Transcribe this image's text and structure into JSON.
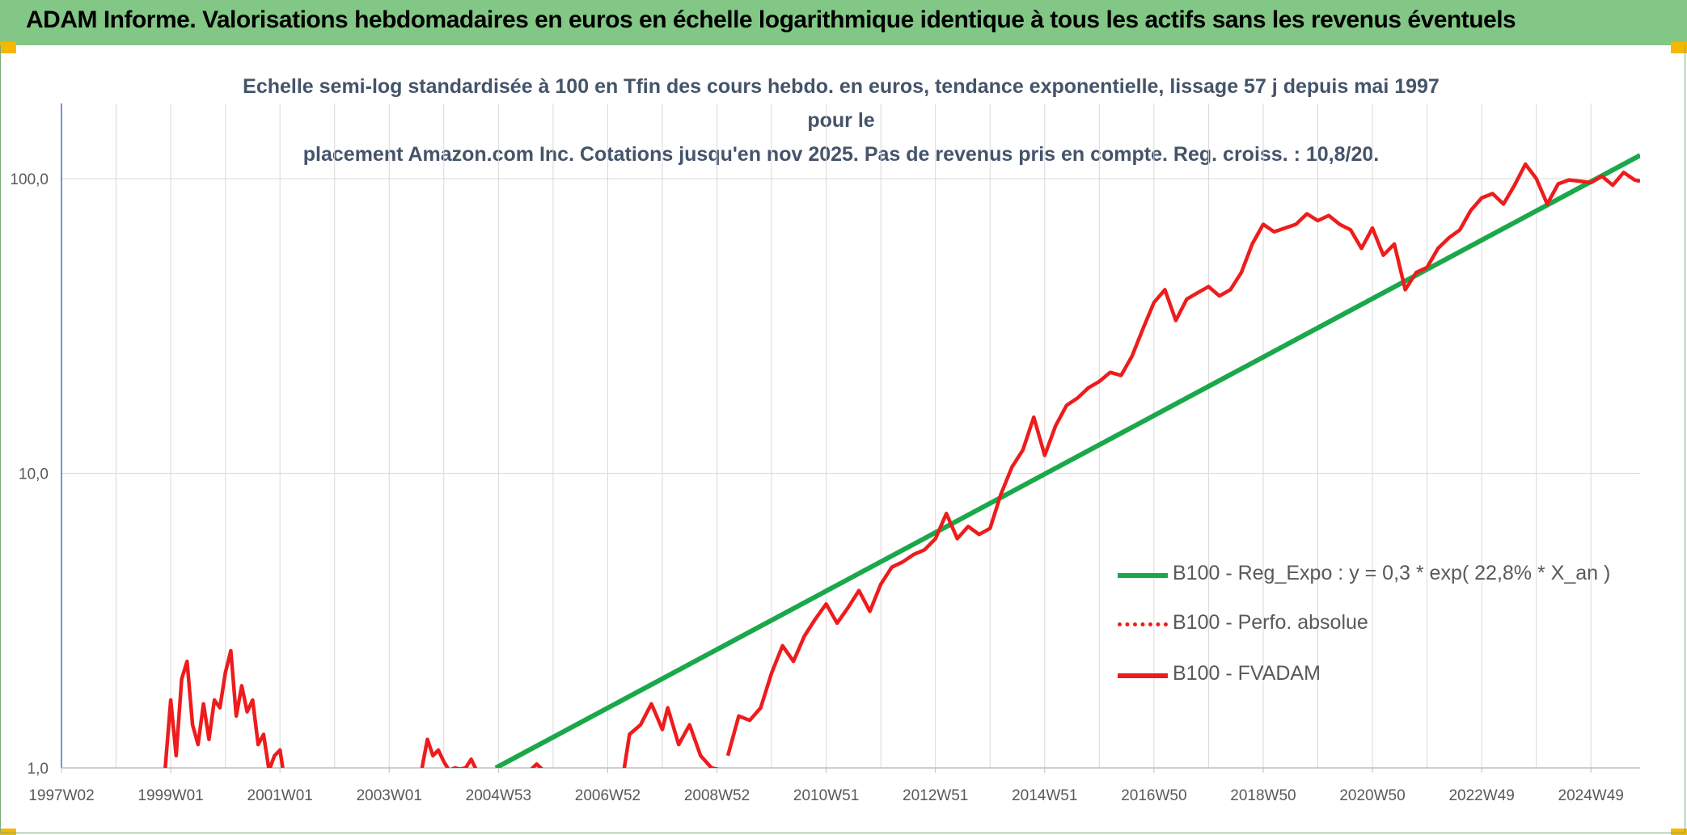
{
  "header": {
    "title": "ADAM Informe. Valorisations hebdomadaires en euros en échelle logarithmique identique à tous les actifs sans les revenus éventuels"
  },
  "colors": {
    "header_bg": "#82c785",
    "trend": "#1aa84a",
    "series": "#ee1c1c",
    "axis": "#4472c4",
    "grid": "#d9d9d9"
  },
  "chart_data": {
    "type": "line",
    "title_line1": "Echelle semi-log standardisée à 100 en Tfin des cours hebdo. en euros, tendance exponentielle, lissage 57 j depuis mai 1997 pour le",
    "title_line2": "placement Amazon.com Inc. Cotations jusqu'en nov 2025. Pas de revenus pris en compte. Reg. croiss. : 10,8/20.",
    "y_scale": "log",
    "ylim": [
      1,
      180
    ],
    "xlim": [
      1997.0,
      2025.9
    ],
    "y_ticks": [
      {
        "value": 1,
        "label": "1,0"
      },
      {
        "value": 10,
        "label": "10,0"
      },
      {
        "value": 100,
        "label": "100,0"
      }
    ],
    "x_ticks": [
      {
        "value": 1997.0,
        "label": "1997W02"
      },
      {
        "value": 1999.0,
        "label": "1999W01"
      },
      {
        "value": 2001.0,
        "label": "2001W01"
      },
      {
        "value": 2003.0,
        "label": "2003W01"
      },
      {
        "value": 2005.0,
        "label": "2004W53"
      },
      {
        "value": 2007.0,
        "label": "2006W52"
      },
      {
        "value": 2009.0,
        "label": "2008W52"
      },
      {
        "value": 2011.0,
        "label": "2010W51"
      },
      {
        "value": 2013.0,
        "label": "2012W51"
      },
      {
        "value": 2015.0,
        "label": "2014W51"
      },
      {
        "value": 2017.0,
        "label": "2016W50"
      },
      {
        "value": 2019.0,
        "label": "2018W50"
      },
      {
        "value": 2021.0,
        "label": "2020W50"
      },
      {
        "value": 2023.0,
        "label": "2022W49"
      },
      {
        "value": 2025.0,
        "label": "2024W49"
      }
    ],
    "grid": true,
    "legend_position": "right",
    "series": [
      {
        "name": "B100 - Reg_Expo : y = 0,3 * exp( 22,8% *  X_an )",
        "style": "solid",
        "color": "#1aa84a",
        "x": [
          2004.95,
          2025.9
        ],
        "y": [
          1.0,
          120.0
        ]
      },
      {
        "name": "B100 - Perfo. absolue",
        "style": "dotted",
        "color": "#ee1c1c",
        "x": [],
        "y": []
      },
      {
        "name": "B100 - FVADAM",
        "style": "solid",
        "color": "#ee1c1c",
        "segments": [
          {
            "x": [
              1998.9,
              1999.0,
              1999.1,
              1999.2,
              1999.3,
              1999.4,
              1999.5,
              1999.6,
              1999.7,
              1999.8,
              1999.9,
              2000.0,
              2000.1,
              2000.2,
              2000.3,
              2000.4,
              2000.5,
              2000.6,
              2000.7,
              2000.8,
              2000.9,
              2001.0,
              2001.05
            ],
            "y": [
              1.0,
              1.7,
              1.1,
              2.0,
              2.3,
              1.4,
              1.2,
              1.65,
              1.25,
              1.7,
              1.6,
              2.1,
              2.5,
              1.5,
              1.9,
              1.55,
              1.7,
              1.2,
              1.3,
              0.98,
              1.1,
              1.15,
              1.0
            ]
          },
          {
            "x": [
              2003.6,
              2003.7,
              2003.8,
              2003.9,
              2004.0,
              2004.1,
              2004.2,
              2004.3,
              2004.4,
              2004.5,
              2004.6
            ],
            "y": [
              1.0,
              1.25,
              1.1,
              1.15,
              1.05,
              0.98,
              1.0,
              0.99,
              1.0,
              1.07,
              0.98
            ]
          },
          {
            "x": [
              2005.6,
              2005.7,
              2005.8
            ],
            "y": [
              0.99,
              1.03,
              0.99
            ]
          },
          {
            "x": [
              2007.3,
              2007.4,
              2007.6,
              2007.8,
              2008.0,
              2008.1,
              2008.3,
              2008.5,
              2008.7,
              2008.9,
              2009.1
            ],
            "y": [
              0.99,
              1.3,
              1.4,
              1.65,
              1.35,
              1.6,
              1.2,
              1.4,
              1.1,
              1.0,
              0.98
            ]
          },
          {
            "x": [
              2009.2,
              2009.4,
              2009.6,
              2009.8,
              2010.0,
              2010.2,
              2010.4,
              2010.6,
              2010.8,
              2011.0,
              2011.2,
              2011.4,
              2011.6,
              2011.8,
              2012.0,
              2012.2,
              2012.4,
              2012.6,
              2012.8,
              2013.0,
              2013.2,
              2013.4,
              2013.6,
              2013.8,
              2014.0,
              2014.2,
              2014.4,
              2014.6,
              2014.8,
              2015.0,
              2015.2,
              2015.4,
              2015.6,
              2015.8,
              2016.0,
              2016.2,
              2016.4,
              2016.6,
              2016.8,
              2017.0,
              2017.2,
              2017.4,
              2017.6,
              2017.8,
              2018.0,
              2018.2,
              2018.4,
              2018.6,
              2018.8,
              2019.0,
              2019.2,
              2019.4,
              2019.6,
              2019.8,
              2020.0,
              2020.2,
              2020.4,
              2020.6,
              2020.8,
              2021.0,
              2021.2,
              2021.4,
              2021.6,
              2021.8,
              2022.0,
              2022.2,
              2022.4,
              2022.6,
              2022.8,
              2023.0,
              2023.2,
              2023.4,
              2023.6,
              2023.8,
              2024.0,
              2024.2,
              2024.4,
              2024.6,
              2024.8,
              2025.0,
              2025.2,
              2025.4,
              2025.6,
              2025.8,
              2025.9
            ],
            "y": [
              1.1,
              1.5,
              1.45,
              1.6,
              2.1,
              2.6,
              2.3,
              2.8,
              3.2,
              3.6,
              3.1,
              3.5,
              4.0,
              3.4,
              4.2,
              4.8,
              5.0,
              5.3,
              5.5,
              6.0,
              7.3,
              6.0,
              6.6,
              6.2,
              6.5,
              8.5,
              10.5,
              12.0,
              15.5,
              11.5,
              14.5,
              17.0,
              18.0,
              19.5,
              20.5,
              22.0,
              21.5,
              25.0,
              31.0,
              38.0,
              42.0,
              33.0,
              39.0,
              41.0,
              43.0,
              40.0,
              42.0,
              48.0,
              60.0,
              70.0,
              66.0,
              68.0,
              70.0,
              76.0,
              72.0,
              75.0,
              70.0,
              67.0,
              58.0,
              68.0,
              55.0,
              60.0,
              42.0,
              48.0,
              50.0,
              58.0,
              63.0,
              67.0,
              78.0,
              86.0,
              89.0,
              82.0,
              95.0,
              112.0,
              100.0,
              82.0,
              96.0,
              99.0,
              98.0,
              97.0,
              102.0,
              95.0,
              105.0,
              99.0,
              98.0
            ]
          }
        ]
      }
    ]
  }
}
